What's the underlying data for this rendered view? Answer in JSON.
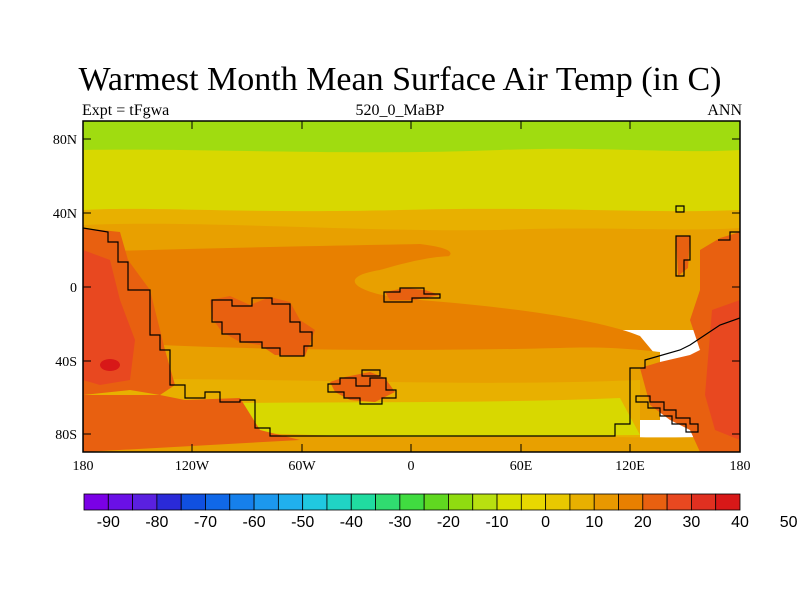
{
  "title": "Warmest Month Mean Surface Air Temp (in C)",
  "subtitle_left": "Expt = tFgwa",
  "subtitle_center": "520_0_MaBP",
  "subtitle_right": "ANN",
  "lat_ticks": [
    "80N",
    "40N",
    "0",
    "40S",
    "80S"
  ],
  "lon_ticks": [
    "180",
    "120W",
    "60W",
    "0",
    "60E",
    "120E",
    "180"
  ],
  "colorbar": {
    "labels": [
      "-90",
      "-80",
      "-70",
      "-60",
      "-50",
      "-40",
      "-30",
      "-20",
      "-10",
      "0",
      "10",
      "20",
      "30",
      "40",
      "50"
    ],
    "colors": [
      "#7a00e6",
      "#6a10e6",
      "#5a20e0",
      "#2a2ad8",
      "#1050e0",
      "#1068e8",
      "#1680ec",
      "#1c98ee",
      "#20b0ee",
      "#20c8e0",
      "#20d4c4",
      "#20dca0",
      "#30dc70",
      "#40dc40",
      "#60d820",
      "#90dc10",
      "#b8e010",
      "#d8e000",
      "#e8d800",
      "#e8c800",
      "#e8b000",
      "#e89800",
      "#e88000",
      "#e86010",
      "#e84820",
      "#e03020",
      "#d81818"
    ]
  },
  "color_scheme": {
    "band_north_pole": "#a0dc10",
    "band_north": "#d8d800",
    "band_midlat": "#e8a800",
    "band_tropics": "#e88000",
    "band_south": "#e8b000",
    "band_south_pole": "#d8d800",
    "land_warm": "#e86010",
    "land_hot": "#e03020",
    "land_cool": "#e89000"
  }
}
